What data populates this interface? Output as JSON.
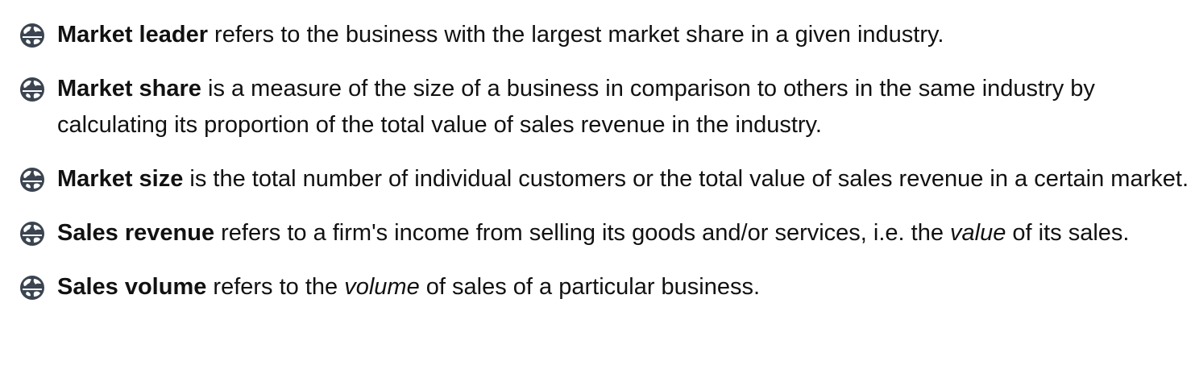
{
  "items": [
    {
      "term": "Market leader",
      "text": " refers to the business with the largest market share in a given industry.",
      "icon": "globe-bullet-icon"
    },
    {
      "term": "Market share",
      "text": " is a measure of the size of a business in comparison to others in the same industry by calculating its proportion of the total value of sales revenue in the industry.",
      "icon": "globe-bullet-icon"
    },
    {
      "term": "Market size",
      "text": " is the total number of individual customers or the total value of sales revenue in a certain market.",
      "icon": "globe-bullet-icon"
    },
    {
      "term": "Sales revenue",
      "text_before": " refers to a firm's income from selling its goods and/or services, i.e. the ",
      "emphasis": "value",
      "text_after": " of its sales.",
      "icon": "globe-bullet-icon"
    },
    {
      "term": "Sales volume",
      "text_before": " refers to the ",
      "emphasis": "volume",
      "text_after": " of sales of a particular business.",
      "icon": "globe-bullet-icon"
    }
  ],
  "colors": {
    "bullet_dark": "#3b4450",
    "text": "#111111"
  }
}
